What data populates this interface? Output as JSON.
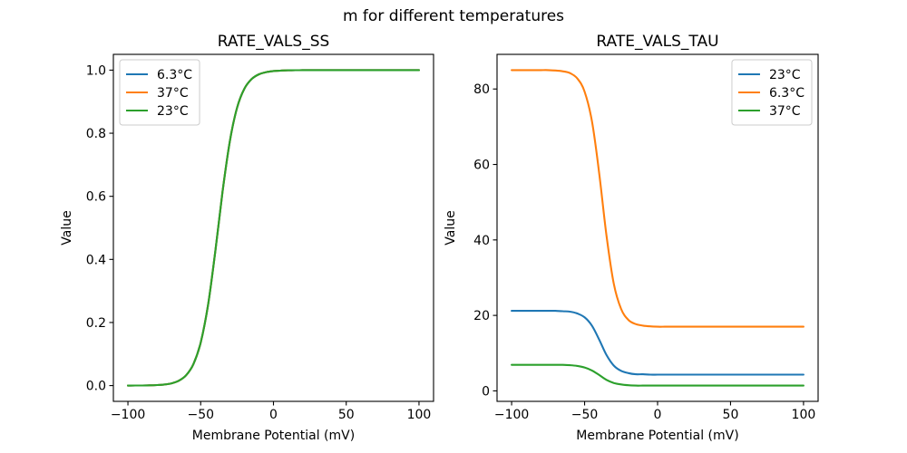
{
  "figure": {
    "suptitle": "m for different temperatures"
  },
  "palette": {
    "blue": "#1f77b4",
    "orange": "#ff7f0e",
    "green": "#2ca02c",
    "text": "#000000",
    "legend_border": "#cccccc"
  },
  "chart_data": [
    {
      "type": "line",
      "title": "RATE_VALS_SS",
      "xlabel": "Membrane Potential (mV)",
      "ylabel": "Value",
      "xlim": [
        -110,
        110
      ],
      "ylim": [
        -0.05,
        1.05
      ],
      "grid": false,
      "xticks": [
        -100,
        -50,
        0,
        50,
        100
      ],
      "xtick_labels": [
        "−100",
        "−50",
        "0",
        "50",
        "100"
      ],
      "yticks": [
        0.0,
        0.2,
        0.4,
        0.6,
        0.8,
        1.0
      ],
      "ytick_labels": [
        "0.0",
        "0.2",
        "0.4",
        "0.6",
        "0.8",
        "1.0"
      ],
      "legend": {
        "position": "upper-left",
        "entries": [
          {
            "label": "6.3°C",
            "color": "#1f77b4"
          },
          {
            "label": "37°C",
            "color": "#ff7f0e"
          },
          {
            "label": "23°C",
            "color": "#2ca02c"
          }
        ]
      },
      "x": [
        -100,
        -95,
        -90,
        -85,
        -80,
        -75,
        -70,
        -65,
        -60,
        -55,
        -50,
        -45,
        -40,
        -35,
        -30,
        -25,
        -20,
        -15,
        -10,
        -5,
        0,
        5,
        10,
        15,
        20,
        25,
        30,
        35,
        40,
        45,
        50,
        55,
        60,
        65,
        70,
        75,
        80,
        85,
        90,
        95,
        100
      ],
      "series": [
        {
          "name": "6.3°C",
          "color": "#1f77b4",
          "y": [
            0.0001,
            0.0002,
            0.0003,
            0.0007,
            0.0016,
            0.0034,
            0.0072,
            0.0155,
            0.0328,
            0.0682,
            0.1363,
            0.254,
            0.4237,
            0.6134,
            0.7739,
            0.8808,
            0.941,
            0.9717,
            0.9867,
            0.9938,
            0.9971,
            0.9987,
            0.9994,
            0.9997,
            0.9999,
            1,
            1,
            1,
            1,
            1,
            1,
            1,
            1,
            1,
            1,
            1,
            1,
            1,
            1,
            1,
            1
          ]
        },
        {
          "name": "37°C",
          "color": "#ff7f0e",
          "y": [
            0.0001,
            0.0002,
            0.0003,
            0.0007,
            0.0016,
            0.0034,
            0.0072,
            0.0155,
            0.0328,
            0.0682,
            0.1363,
            0.254,
            0.4237,
            0.6134,
            0.7739,
            0.8808,
            0.941,
            0.9717,
            0.9867,
            0.9938,
            0.9971,
            0.9987,
            0.9994,
            0.9997,
            0.9999,
            1,
            1,
            1,
            1,
            1,
            1,
            1,
            1,
            1,
            1,
            1,
            1,
            1,
            1,
            1,
            1
          ]
        },
        {
          "name": "23°C",
          "color": "#2ca02c",
          "y": [
            0.0001,
            0.0002,
            0.0003,
            0.0007,
            0.0016,
            0.0034,
            0.0072,
            0.0155,
            0.0328,
            0.0682,
            0.1363,
            0.254,
            0.4237,
            0.6134,
            0.7739,
            0.8808,
            0.941,
            0.9717,
            0.9867,
            0.9938,
            0.9971,
            0.9987,
            0.9994,
            0.9997,
            0.9999,
            1,
            1,
            1,
            1,
            1,
            1,
            1,
            1,
            1,
            1,
            1,
            1,
            1,
            1,
            1,
            1
          ]
        }
      ]
    },
    {
      "type": "line",
      "title": "RATE_VALS_TAU",
      "xlabel": "Membrane Potential (mV)",
      "ylabel": "Value",
      "xlim": [
        -110,
        110
      ],
      "ylim": [
        -2.78,
        89.18
      ],
      "grid": false,
      "xticks": [
        -100,
        -50,
        0,
        50,
        100
      ],
      "xtick_labels": [
        "−100",
        "−50",
        "0",
        "50",
        "100"
      ],
      "yticks": [
        0,
        20,
        40,
        60,
        80
      ],
      "ytick_labels": [
        "0",
        "20",
        "40",
        "60",
        "80"
      ],
      "legend": {
        "position": "upper-right",
        "entries": [
          {
            "label": "23°C",
            "color": "#1f77b4"
          },
          {
            "label": "6.3°C",
            "color": "#ff7f0e"
          },
          {
            "label": "37°C",
            "color": "#2ca02c"
          }
        ]
      },
      "x": [
        -100,
        -95,
        -90,
        -85,
        -80,
        -75,
        -70,
        -65,
        -60,
        -55,
        -50,
        -45,
        -40,
        -35,
        -30,
        -25,
        -20,
        -15,
        -10,
        -5,
        0,
        5,
        10,
        15,
        20,
        25,
        30,
        35,
        40,
        45,
        50,
        55,
        60,
        65,
        70,
        75,
        80,
        85,
        90,
        95,
        100
      ],
      "series": [
        {
          "name": "23°C",
          "color": "#1f77b4",
          "y": [
            21.2,
            21.2,
            21.2,
            21.2,
            21.2,
            21.2,
            21.2,
            21.1,
            21.0,
            20.5,
            19.5,
            17.3,
            13.6,
            9.5,
            6.7,
            5.3,
            4.7,
            4.4,
            4.4,
            4.3,
            4.3,
            4.3,
            4.3,
            4.3,
            4.3,
            4.3,
            4.3,
            4.3,
            4.3,
            4.3,
            4.3,
            4.3,
            4.3,
            4.3,
            4.3,
            4.3,
            4.3,
            4.3,
            4.3,
            4.3,
            4.3
          ]
        },
        {
          "name": "6.3°C",
          "color": "#ff7f0e",
          "y": [
            85.0,
            85.0,
            85.0,
            85.0,
            85.0,
            85.0,
            84.9,
            84.7,
            84.2,
            82.8,
            79.3,
            71.5,
            57.7,
            41.1,
            28.4,
            21.7,
            18.8,
            17.7,
            17.3,
            17.1,
            17.0,
            17.0,
            17.0,
            17.0,
            17.0,
            17.0,
            17.0,
            17.0,
            17.0,
            17.0,
            17.0,
            17.0,
            17.0,
            17.0,
            17.0,
            17.0,
            17.0,
            17.0,
            17.0,
            17.0,
            17.0
          ]
        },
        {
          "name": "37°C",
          "color": "#2ca02c",
          "y": [
            6.9,
            6.9,
            6.9,
            6.9,
            6.9,
            6.9,
            6.9,
            6.9,
            6.8,
            6.6,
            6.2,
            5.4,
            4.2,
            2.9,
            2.1,
            1.7,
            1.5,
            1.4,
            1.4,
            1.4,
            1.4,
            1.4,
            1.4,
            1.4,
            1.4,
            1.4,
            1.4,
            1.4,
            1.4,
            1.4,
            1.4,
            1.4,
            1.4,
            1.4,
            1.4,
            1.4,
            1.4,
            1.4,
            1.4,
            1.4,
            1.4
          ]
        }
      ]
    }
  ]
}
